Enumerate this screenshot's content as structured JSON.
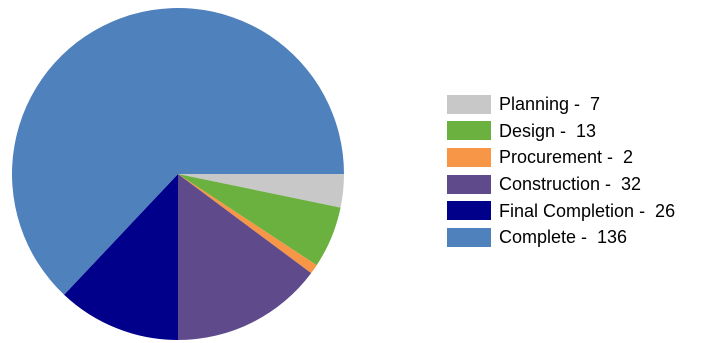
{
  "chart_data": {
    "type": "pie",
    "slices": [
      {
        "label": "Planning",
        "value": 7,
        "color": "#C8C8C8",
        "legend_text": "Planning -  7"
      },
      {
        "label": "Design",
        "value": 13,
        "color": "#6BB13F",
        "legend_text": "Design -  13"
      },
      {
        "label": "Procurement",
        "value": 2,
        "color": "#F79646",
        "legend_text": "Procurement -  2"
      },
      {
        "label": "Construction",
        "value": 32,
        "color": "#5F4B8B",
        "legend_text": "Construction -  32"
      },
      {
        "label": "Final Completion",
        "value": 26,
        "color": "#00008B",
        "legend_text": "Final Completion -  26"
      },
      {
        "label": "Complete",
        "value": 136,
        "color": "#4F81BD",
        "legend_text": "Complete -  136"
      }
    ],
    "start_direction": "east",
    "slice_order": "clockwise",
    "legend_placement": "right"
  }
}
